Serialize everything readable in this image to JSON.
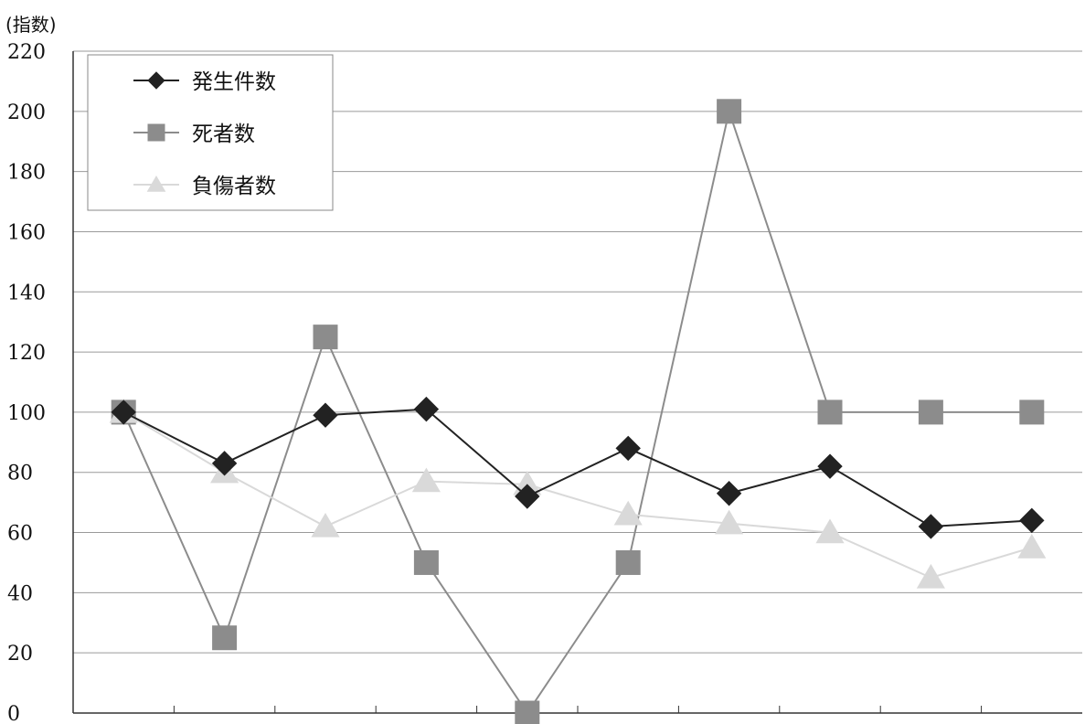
{
  "chart_data": {
    "type": "line",
    "y_unit_label": "(指数)",
    "ylim": [
      0,
      220
    ],
    "y_ticks": [
      0,
      20,
      40,
      60,
      80,
      100,
      120,
      140,
      160,
      180,
      200,
      220
    ],
    "x_points": 10,
    "grid": true,
    "legend_position": "top-left",
    "series": [
      {
        "name": "発生件数",
        "marker": "diamond",
        "color": "#222222",
        "values": [
          100,
          83,
          99,
          101,
          72,
          88,
          73,
          82,
          62,
          64
        ]
      },
      {
        "name": "死者数",
        "marker": "square",
        "color": "#8c8c8c",
        "values": [
          100,
          25,
          125,
          50,
          0,
          50,
          200,
          100,
          100,
          100
        ]
      },
      {
        "name": "負傷者数",
        "marker": "triangle",
        "color": "#d9d9d9",
        "values": [
          100,
          80,
          62,
          77,
          76,
          66,
          63,
          60,
          45,
          55
        ]
      }
    ]
  }
}
